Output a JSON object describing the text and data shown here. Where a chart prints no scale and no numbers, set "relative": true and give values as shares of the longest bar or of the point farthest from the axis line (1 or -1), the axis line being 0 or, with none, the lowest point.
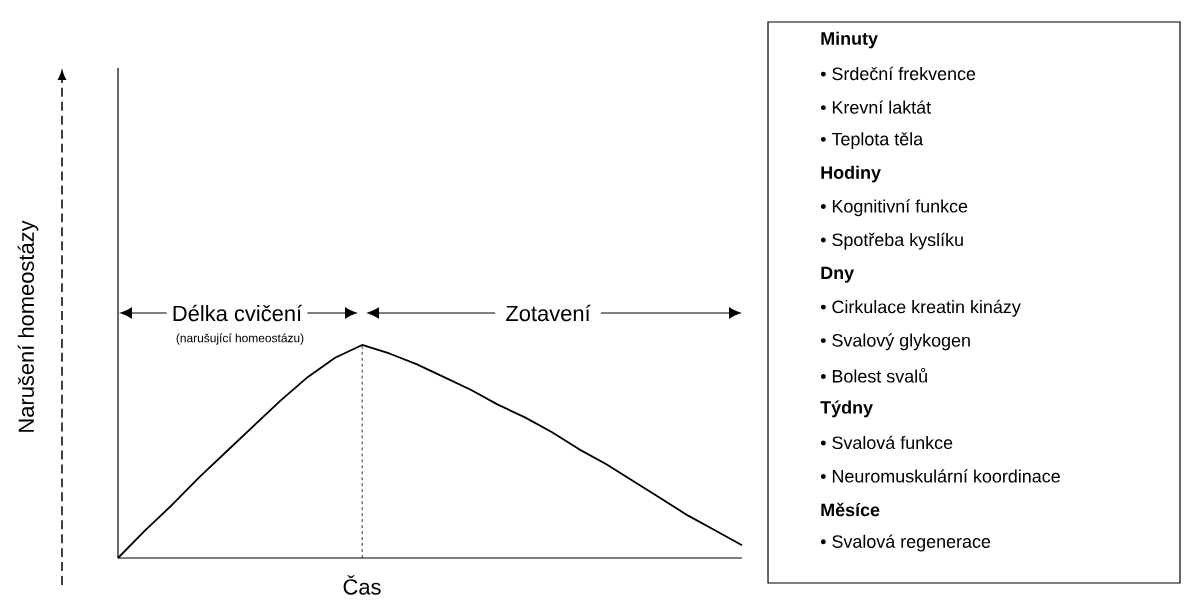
{
  "chart_data": [
    {
      "type": "line",
      "relative": true,
      "xlabel": "Čas",
      "ylabel": "Narušení homeostázy",
      "color": "#000000",
      "marker": "none",
      "line_style": "solid",
      "categories": [
        null,
        null,
        null,
        null,
        null,
        null,
        null,
        null,
        null,
        null,
        null,
        null,
        null,
        null,
        null,
        null,
        null,
        null,
        null,
        null,
        null,
        null,
        null,
        null
      ],
      "values": [
        0,
        0.13,
        0.25,
        0.38,
        0.5,
        0.62,
        0.74,
        0.85,
        0.94,
        1,
        0.96,
        0.91,
        0.85,
        0.79,
        0.72,
        0.66,
        0.59,
        0.51,
        0.44,
        0.36,
        0.28,
        0.2,
        0.13,
        0.06
      ],
      "annotations": [
        "Délka cvičení",
        "(narušující homeostázu)",
        "Zotavení"
      ]
    },
    {
      "type": "other",
      "annotations": [
        "**Minuty**",
        "• Srdeční frekvence",
        "• Krevní laktát",
        "• Teplota těla",
        "**Hodiny**",
        "• Kognitivní funkce",
        "• Spotřeba kyslíku",
        "**Dny**",
        "• Cirkulace kreatin kinázy",
        "• Svalový glykogen",
        "• Bolest svalů",
        "**Týdny**",
        "• Svalová funkce",
        "• Neuromuskulární koordinace",
        "**Měsíce**",
        "• Svalová regenerace"
      ]
    }
  ]
}
